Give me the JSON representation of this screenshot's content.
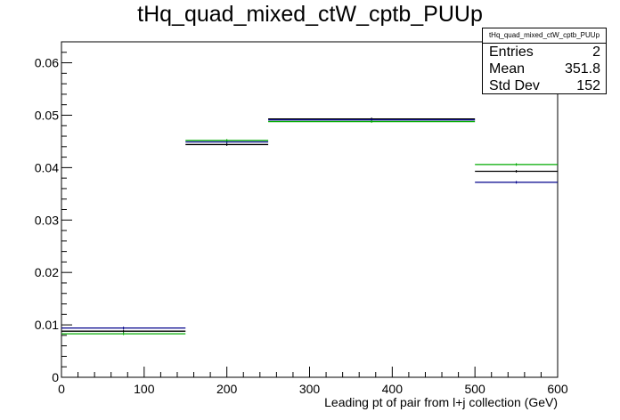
{
  "title": "tHq_quad_mixed_ctW_cptb_PUUp",
  "stats_box": {
    "name": "tHq_quad_mixed_ctW_cptb_PUUp",
    "rows": [
      {
        "label": "Entries",
        "value": "2"
      },
      {
        "label": "Mean",
        "value": "351.8"
      },
      {
        "label": "Std Dev",
        "value": "152"
      }
    ]
  },
  "chart_data": {
    "type": "histogram",
    "title": "tHq_quad_mixed_ctW_cptb_PUUp",
    "xlabel": "Leading pt of pair from l+j collection (GeV)",
    "ylabel": "",
    "xlim": [
      0,
      600
    ],
    "ylim": [
      0,
      0.064
    ],
    "x_ticks": [
      0,
      100,
      200,
      300,
      400,
      500,
      600
    ],
    "x_tick_labels": [
      "0",
      "100",
      "200",
      "300",
      "400",
      "500",
      "600"
    ],
    "y_ticks": [
      0,
      0.01,
      0.02,
      0.03,
      0.04,
      0.05,
      0.06
    ],
    "y_tick_labels": [
      "0",
      "0.01",
      "0.02",
      "0.03",
      "0.04",
      "0.05",
      "0.06"
    ],
    "bin_edges": [
      0,
      150,
      250,
      500,
      600
    ],
    "series": [
      {
        "color": "#000000",
        "values": [
          0.0088,
          0.0444,
          0.0493,
          0.0393
        ]
      },
      {
        "color": "#00008b",
        "values": [
          0.0094,
          0.0449,
          0.0491,
          0.0372
        ]
      },
      {
        "color": "#00aa00",
        "values": [
          0.0083,
          0.0452,
          0.0488,
          0.0406
        ]
      }
    ],
    "grid": false,
    "legend": "top-right"
  }
}
